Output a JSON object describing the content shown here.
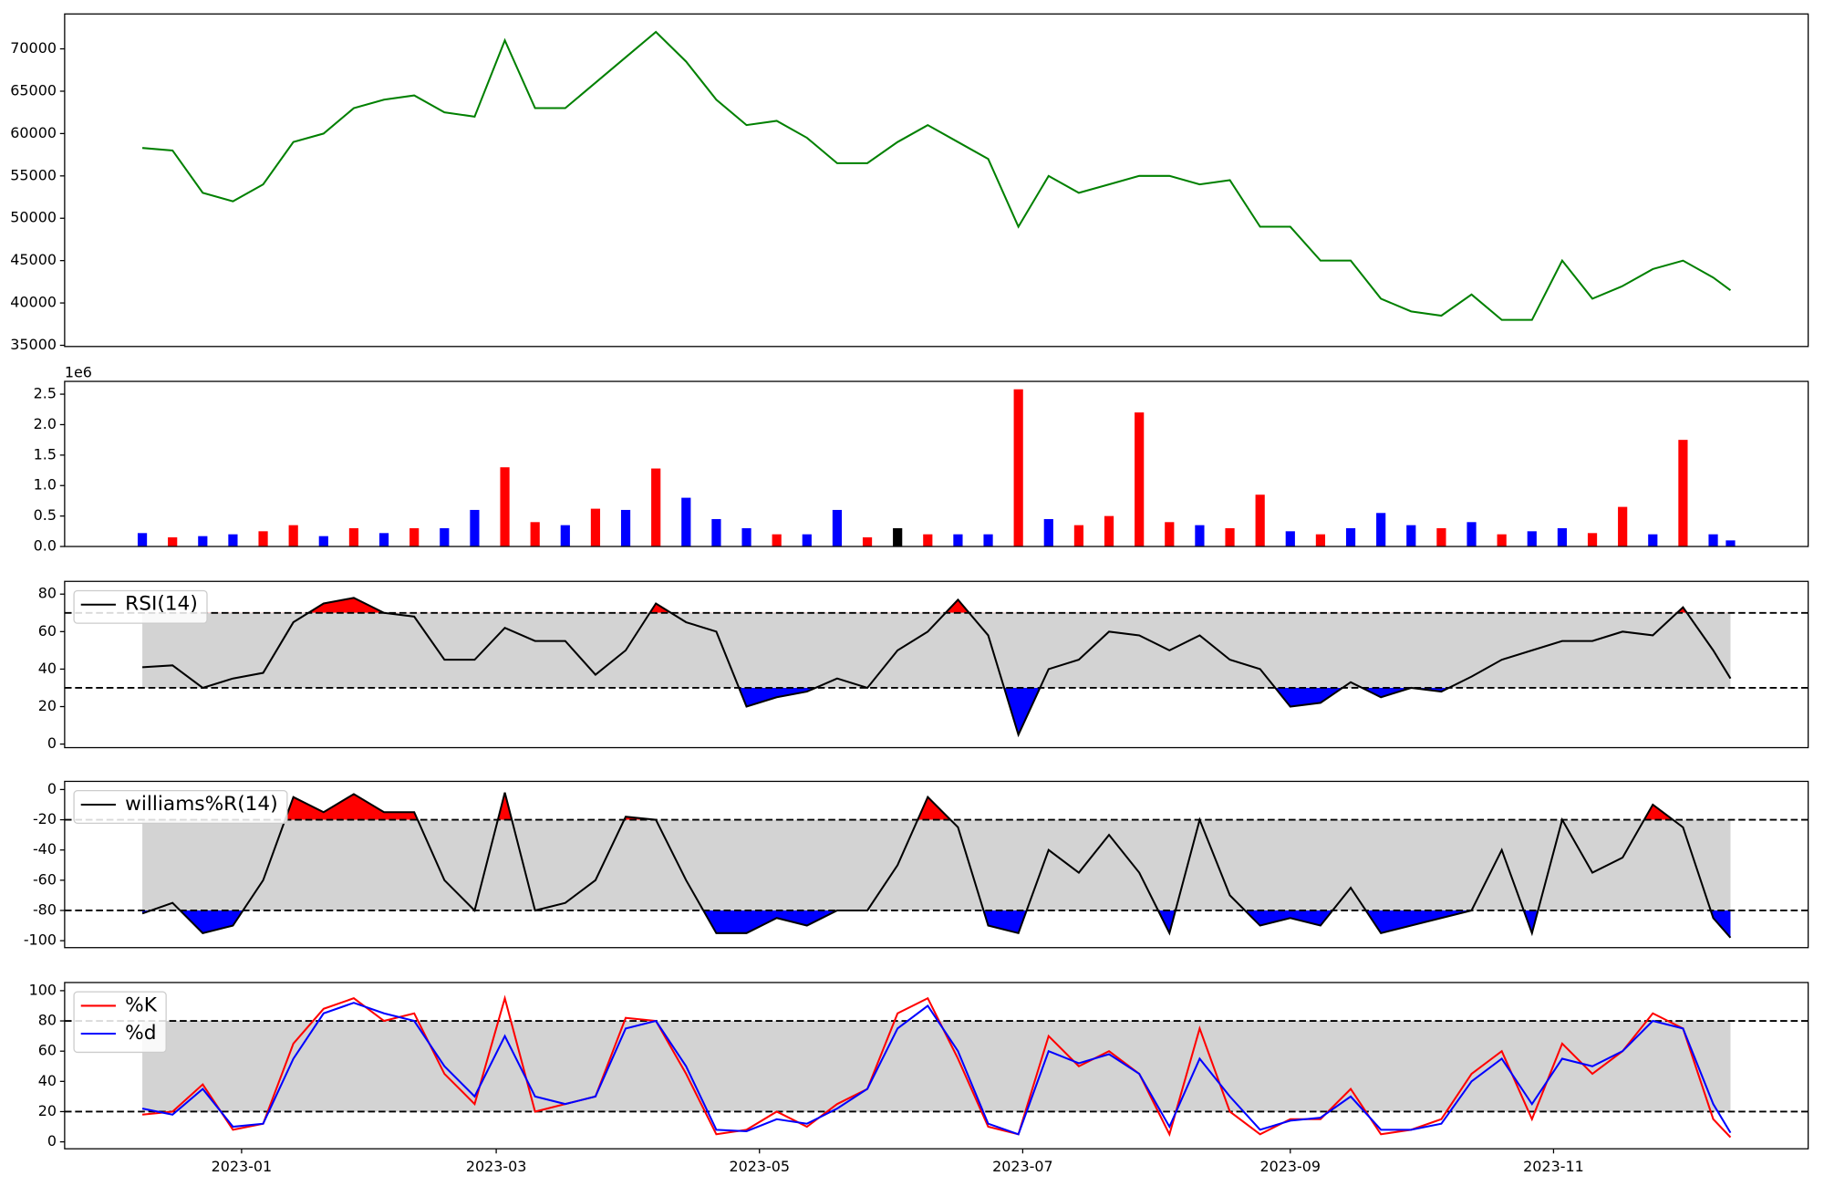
{
  "chart_data": [
    {
      "type": "line",
      "xlim": [
        -41,
        363
      ],
      "x": [
        -23,
        -16,
        -9,
        -2,
        5,
        12,
        19,
        26,
        33,
        40,
        47,
        54,
        61,
        68,
        75,
        82,
        89,
        96,
        103,
        110,
        117,
        124,
        131,
        138,
        145,
        152,
        159,
        166,
        173,
        180,
        187,
        194,
        201,
        208,
        215,
        222,
        229,
        236,
        243,
        250,
        257,
        264,
        271,
        278,
        285,
        292,
        299,
        306,
        313,
        320,
        327,
        334,
        341,
        345
      ],
      "ylim": [
        34860,
        74120
      ],
      "yticks": [
        35000,
        40000,
        45000,
        50000,
        55000,
        60000,
        65000,
        70000
      ],
      "series": [
        {
          "color": "#008000",
          "values": [
            58300,
            58000,
            53000,
            52000,
            54000,
            59000,
            60000,
            63000,
            64000,
            64500,
            62500,
            62000,
            71000,
            63000,
            63000,
            66000,
            69000,
            72000,
            68500,
            64000,
            61000,
            61500,
            59500,
            56500,
            56500,
            59000,
            61000,
            59000,
            57000,
            49000,
            55000,
            53000,
            54000,
            55000,
            55000,
            54000,
            54500,
            49000,
            49000,
            45000,
            45000,
            40500,
            39000,
            38500,
            41000,
            38000,
            38000,
            45000,
            40500,
            42000,
            44000,
            45000,
            43000,
            41500
          ]
        }
      ]
    },
    {
      "type": "bar",
      "xlim": [
        -41,
        363
      ],
      "x": [
        -23,
        -16,
        -9,
        -2,
        5,
        12,
        19,
        26,
        33,
        40,
        47,
        54,
        61,
        68,
        75,
        82,
        89,
        96,
        103,
        110,
        117,
        124,
        131,
        138,
        145,
        152,
        159,
        166,
        173,
        180,
        187,
        194,
        201,
        208,
        215,
        222,
        229,
        236,
        243,
        250,
        257,
        264,
        271,
        278,
        285,
        292,
        299,
        306,
        313,
        320,
        327,
        334,
        341,
        345
      ],
      "ylim": [
        0,
        2710000
      ],
      "offset_label": "1e6",
      "yticks": [
        {
          "value": 0,
          "label": "0.0"
        },
        {
          "value": 500000,
          "label": "0.5"
        },
        {
          "value": 1000000,
          "label": "1.0"
        },
        {
          "value": 1500000,
          "label": "1.5"
        },
        {
          "value": 2000000,
          "label": "2.0"
        },
        {
          "value": 2500000,
          "label": "2.5"
        }
      ],
      "values": [
        220000,
        150000,
        170000,
        200000,
        250000,
        350000,
        170000,
        300000,
        220000,
        300000,
        300000,
        600000,
        1300000,
        400000,
        350000,
        620000,
        600000,
        1280000,
        800000,
        450000,
        300000,
        200000,
        200000,
        600000,
        150000,
        300000,
        200000,
        200000,
        200000,
        2580000,
        450000,
        350000,
        500000,
        2200000,
        400000,
        350000,
        300000,
        850000,
        250000,
        200000,
        300000,
        550000,
        350000,
        300000,
        400000,
        200000,
        250000,
        300000,
        220000,
        650000,
        200000,
        1750000,
        200000,
        100000
      ],
      "colors": [
        "#0000ff",
        "#ff0000",
        "#0000ff",
        "#0000ff",
        "#ff0000",
        "#ff0000",
        "#0000ff",
        "#ff0000",
        "#0000ff",
        "#ff0000",
        "#0000ff",
        "#0000ff",
        "#ff0000",
        "#ff0000",
        "#0000ff",
        "#ff0000",
        "#0000ff",
        "#ff0000",
        "#0000ff",
        "#0000ff",
        "#0000ff",
        "#ff0000",
        "#0000ff",
        "#0000ff",
        "#ff0000",
        "#000000",
        "#ff0000",
        "#0000ff",
        "#0000ff",
        "#ff0000",
        "#0000ff",
        "#ff0000",
        "#ff0000",
        "#ff0000",
        "#ff0000",
        "#0000ff",
        "#ff0000",
        "#ff0000",
        "#0000ff",
        "#ff0000",
        "#0000ff",
        "#0000ff",
        "#0000ff",
        "#ff0000",
        "#0000ff",
        "#ff0000",
        "#0000ff",
        "#0000ff",
        "#ff0000",
        "#ff0000",
        "#0000ff",
        "#ff0000",
        "#0000ff",
        "#0000ff"
      ]
    },
    {
      "type": "line",
      "xlim": [
        -41,
        363
      ],
      "x": [
        -23,
        -16,
        -9,
        -2,
        5,
        12,
        19,
        26,
        33,
        40,
        47,
        54,
        61,
        68,
        75,
        82,
        89,
        96,
        103,
        110,
        117,
        124,
        131,
        138,
        145,
        152,
        159,
        166,
        173,
        180,
        187,
        194,
        201,
        208,
        215,
        222,
        229,
        236,
        243,
        250,
        257,
        264,
        271,
        278,
        285,
        292,
        299,
        306,
        313,
        320,
        327,
        334,
        341,
        345
      ],
      "ylim": [
        -1.9,
        86.8
      ],
      "yticks": [
        0,
        20,
        40,
        60,
        80
      ],
      "levels": [
        70,
        30
      ],
      "fill": true,
      "legend": true,
      "series": [
        {
          "name": "RSI(14)",
          "color": "#000000",
          "values": [
            41,
            42,
            30,
            35,
            38,
            65,
            75,
            78,
            70,
            68,
            45,
            45,
            62,
            55,
            55,
            37,
            50,
            75,
            65,
            60,
            20,
            25,
            28,
            35,
            30,
            50,
            60,
            77,
            58,
            5,
            40,
            45,
            60,
            58,
            50,
            58,
            45,
            40,
            20,
            22,
            33,
            25,
            30,
            28,
            36,
            45,
            50,
            55,
            55,
            60,
            58,
            73,
            50,
            35
          ]
        }
      ]
    },
    {
      "type": "line",
      "xlim": [
        -41,
        363
      ],
      "x": [
        -23,
        -16,
        -9,
        -2,
        5,
        12,
        19,
        26,
        33,
        40,
        47,
        54,
        61,
        68,
        75,
        82,
        89,
        96,
        103,
        110,
        117,
        124,
        131,
        138,
        145,
        152,
        159,
        166,
        173,
        180,
        187,
        194,
        201,
        208,
        215,
        222,
        229,
        236,
        243,
        250,
        257,
        264,
        271,
        278,
        285,
        292,
        299,
        306,
        313,
        320,
        327,
        334,
        341,
        345
      ],
      "ylim": [
        -104.6,
        5.4
      ],
      "yticks": [
        -100,
        -80,
        -60,
        -40,
        -20,
        0
      ],
      "levels": [
        -20,
        -80
      ],
      "fill": true,
      "legend": true,
      "series": [
        {
          "name": "williams%R(14)",
          "color": "#000000",
          "values": [
            -82,
            -75,
            -95,
            -90,
            -60,
            -5,
            -15,
            -3,
            -15,
            -15,
            -60,
            -80,
            -2,
            -80,
            -75,
            -60,
            -18,
            -20,
            -60,
            -95,
            -95,
            -85,
            -90,
            -80,
            -80,
            -50,
            -5,
            -25,
            -90,
            -95,
            -40,
            -55,
            -30,
            -55,
            -95,
            -20,
            -70,
            -90,
            -85,
            -90,
            -65,
            -95,
            -90,
            -85,
            -80,
            -40,
            -95,
            -20,
            -55,
            -45,
            -10,
            -25,
            -85,
            -98
          ]
        }
      ]
    },
    {
      "type": "line",
      "xlim": [
        -41,
        363
      ],
      "x": [
        -23,
        -16,
        -9,
        -2,
        5,
        12,
        19,
        26,
        33,
        40,
        47,
        54,
        61,
        68,
        75,
        82,
        89,
        96,
        103,
        110,
        117,
        124,
        131,
        138,
        145,
        152,
        159,
        166,
        173,
        180,
        187,
        194,
        201,
        208,
        215,
        222,
        229,
        236,
        243,
        250,
        257,
        264,
        271,
        278,
        285,
        292,
        299,
        306,
        313,
        320,
        327,
        334,
        341,
        345
      ],
      "ylim": [
        -4.6,
        105.4
      ],
      "yticks": [
        0,
        20,
        40,
        60,
        80,
        100
      ],
      "levels": [
        80,
        20
      ],
      "legend": true,
      "xticks": [
        {
          "value": 0,
          "label": "2023-01"
        },
        {
          "value": 59,
          "label": "2023-03"
        },
        {
          "value": 120,
          "label": "2023-05"
        },
        {
          "value": 181,
          "label": "2023-07"
        },
        {
          "value": 243,
          "label": "2023-09"
        },
        {
          "value": 304,
          "label": "2023-11"
        }
      ],
      "series": [
        {
          "name": "%K",
          "color": "#ff0000",
          "values": [
            18,
            20,
            38,
            8,
            12,
            65,
            88,
            95,
            80,
            85,
            45,
            25,
            95,
            20,
            25,
            30,
            82,
            80,
            45,
            5,
            8,
            20,
            10,
            25,
            35,
            85,
            95,
            55,
            10,
            5,
            70,
            50,
            60,
            45,
            5,
            75,
            20,
            5,
            15,
            15,
            35,
            5,
            8,
            15,
            45,
            60,
            15,
            65,
            45,
            60,
            85,
            75,
            15,
            3
          ]
        },
        {
          "name": "%d",
          "color": "#0000ff",
          "values": [
            22,
            18,
            35,
            10,
            12,
            55,
            85,
            92,
            85,
            80,
            50,
            30,
            70,
            30,
            25,
            30,
            75,
            80,
            50,
            8,
            7,
            15,
            12,
            22,
            35,
            75,
            90,
            60,
            12,
            5,
            60,
            52,
            58,
            45,
            10,
            55,
            30,
            8,
            14,
            16,
            30,
            8,
            8,
            12,
            40,
            55,
            25,
            55,
            50,
            60,
            80,
            75,
            25,
            6
          ]
        }
      ]
    }
  ]
}
